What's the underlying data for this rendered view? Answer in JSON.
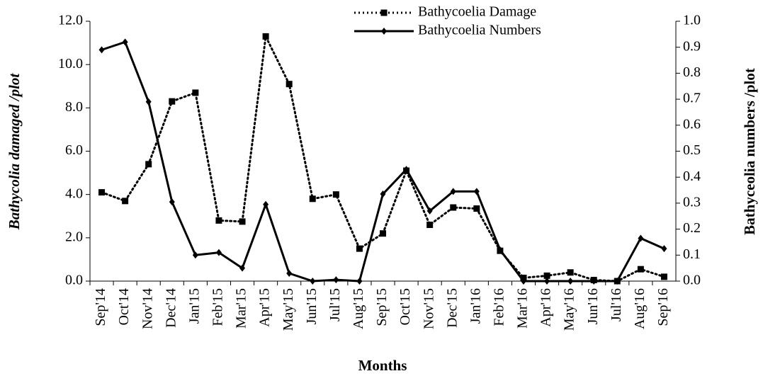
{
  "chart_data": {
    "type": "line",
    "x_label": "Months",
    "y_label": "Bathycolia damaged /plot",
    "y2_label": "Bathyceolia numbers /plot",
    "categories": [
      "Sep'14",
      "Oct'14",
      "Nov'14",
      "Dec'14",
      "Jan'15",
      "Feb'15",
      "Mar'15",
      "Apr'15",
      "May'15",
      "Jun'15",
      "Jul'15",
      "Aug'15",
      "Sep'15",
      "Oct'15",
      "Nov'15",
      "Dec'15",
      "Jan'16",
      "Feb'16",
      "Mar'16",
      "Apr'16",
      "May'16",
      "Jun'16",
      "Jul'16",
      "Aug'16",
      "Sep'16"
    ],
    "series": [
      {
        "name": "Bathycoelia Damage",
        "color": "#000000",
        "dash": "dotted",
        "marker": "square",
        "values": [
          4.1,
          3.7,
          5.4,
          8.3,
          8.7,
          2.8,
          2.75,
          11.3,
          9.1,
          3.8,
          4.0,
          1.5,
          2.2,
          5.1,
          2.6,
          3.4,
          3.35,
          1.4,
          0.15,
          0.25,
          0.4,
          0.05,
          0.0,
          0.55,
          0.2
        ]
      },
      {
        "name": "Bathycoelia Numbers",
        "color": "#000000",
        "dash": "solid",
        "marker": "diamond",
        "axis": "y2",
        "values": [
          0.89,
          0.92,
          0.69,
          0.305,
          0.1,
          0.11,
          0.05,
          0.295,
          0.03,
          0.0,
          0.005,
          0.0,
          0.335,
          0.43,
          0.27,
          0.345,
          0.345,
          0.12,
          0.0,
          0.0,
          0.0,
          0.0,
          0.0,
          0.165,
          0.125
        ]
      }
    ],
    "ylim": [
      0,
      12
    ],
    "yticks": [
      {
        "value": 0,
        "label": "0.0"
      },
      {
        "value": 2,
        "label": "2.0"
      },
      {
        "value": 4,
        "label": "4.0"
      },
      {
        "value": 6,
        "label": "6.0"
      },
      {
        "value": 8,
        "label": "8.0"
      },
      {
        "value": 10,
        "label": "10.0"
      },
      {
        "value": 12,
        "label": "12.0"
      }
    ],
    "y2lim": [
      0,
      1
    ],
    "y2ticks": [
      {
        "value": 0,
        "label": "0.0"
      },
      0.1,
      0.2,
      0.3,
      0.4,
      0.5,
      0.6,
      0.7,
      0.8,
      0.9,
      {
        "value": 1,
        "label": "1.0"
      }
    ],
    "legend": "top"
  }
}
